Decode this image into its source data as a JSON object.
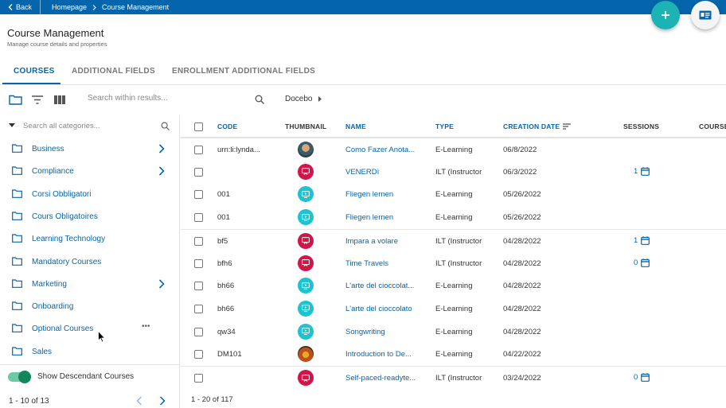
{
  "topbar": {
    "back_label": "Back",
    "crumbs": [
      "Homepage",
      "Course Management"
    ]
  },
  "page": {
    "title": "Course Management",
    "subtitle": "Manage course details and properties"
  },
  "tabs": [
    {
      "label": "COURSES",
      "active": true
    },
    {
      "label": "ADDITIONAL FIELDS",
      "active": false
    },
    {
      "label": "ENROLLMENT ADDITIONAL FIELDS",
      "active": false
    }
  ],
  "toolbar": {
    "search_placeholder": "Search within results...",
    "catalog_label": "Docebo"
  },
  "sidebar": {
    "search_placeholder": "Search all categories...",
    "categories": [
      {
        "label": "Business",
        "has_children": true
      },
      {
        "label": "Compliance",
        "has_children": true
      },
      {
        "label": "Corsi Obbligatori",
        "has_children": false
      },
      {
        "label": "Cours Obligatoires",
        "has_children": false
      },
      {
        "label": "Learning Technology",
        "has_children": false
      },
      {
        "label": "Mandatory Courses",
        "has_children": false
      },
      {
        "label": "Marketing",
        "has_children": true
      },
      {
        "label": "Onboarding",
        "has_children": false
      },
      {
        "label": "Optional Courses",
        "has_children": false,
        "more_menu": "•••"
      },
      {
        "label": "Sales",
        "has_children": false
      }
    ],
    "toggle_label": "Show Descendant Courses",
    "pagination": "1 - 10 of 13"
  },
  "table": {
    "headers": {
      "code": "CODE",
      "thumbnail": "THUMBNAIL",
      "name": "NAME",
      "type": "TYPE",
      "creation_date": "CREATION DATE",
      "sessions": "SESSIONS",
      "course": "COURSE"
    },
    "rows": [
      {
        "code": "urn:li:lynda...",
        "thumb": "photo1",
        "name": "Como Fazer Anota...",
        "type": "E-Learning",
        "date": "06/8/2022",
        "sessions": ""
      },
      {
        "code": "",
        "thumb": "ilt",
        "name": "VENERDì",
        "type": "ILT (Instructor",
        "date": "06/3/2022",
        "sessions": "1"
      },
      {
        "code": "001",
        "thumb": "elearn",
        "name": "Fliegen lernen",
        "type": "E-Learning",
        "date": "05/26/2022",
        "sessions": ""
      },
      {
        "code": "001",
        "thumb": "elearn",
        "name": "Fliegen lernen",
        "type": "E-Learning",
        "date": "05/26/2022",
        "sessions": ""
      },
      {
        "code": "bf5",
        "thumb": "ilt",
        "name": "Impara a volare",
        "type": "ILT (Instructor",
        "date": "04/28/2022",
        "sessions": "1"
      },
      {
        "code": "bfh6",
        "thumb": "ilt",
        "name": "Time Travels",
        "type": "ILT (Instructor",
        "date": "04/28/2022",
        "sessions": "0"
      },
      {
        "code": "bh66",
        "thumb": "elearn",
        "name": "L'arte del cioccolat...",
        "type": "E-Learning",
        "date": "04/28/2022",
        "sessions": ""
      },
      {
        "code": "bh66",
        "thumb": "elearn",
        "name": "L'arte del cioccolato",
        "type": "E-Learning",
        "date": "04/28/2022",
        "sessions": ""
      },
      {
        "code": "qw34",
        "thumb": "elearn",
        "name": "Songwriting",
        "type": "E-Learning",
        "date": "04/28/2022",
        "sessions": ""
      },
      {
        "code": "DM101",
        "thumb": "photo2",
        "name": "Introduction to De...",
        "type": "E-Learning",
        "date": "04/22/2022",
        "sessions": ""
      },
      {
        "code": "",
        "thumb": "ilt",
        "name": "Self-paced-readyte...",
        "type": "ILT (Instructor",
        "date": "03/24/2022",
        "sessions": "0"
      }
    ],
    "pagination": "1 - 20 of 117"
  },
  "colors": {
    "primary": "#0465ac",
    "fab_add": "#1bb3b3",
    "ilt_thumb": "#d0154a",
    "elearning_thumb": "#1ec3cf",
    "toggle_on": "#12875c"
  }
}
